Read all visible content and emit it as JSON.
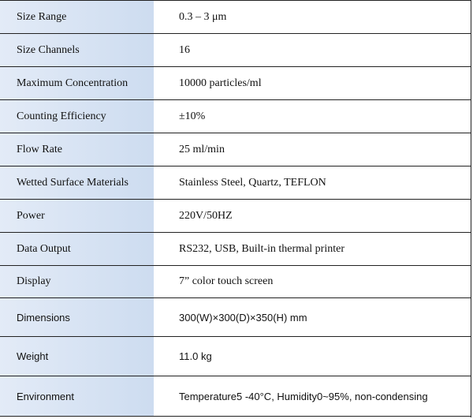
{
  "table": {
    "rows": [
      [
        "Size Range",
        "0.3 – 3 μm"
      ],
      [
        "Size Channels",
        "16"
      ],
      [
        "Maximum Concentration",
        "10000 particles/ml"
      ],
      [
        "Counting Efficiency",
        "±10%"
      ],
      [
        "Flow Rate",
        "25 ml/min"
      ],
      [
        "Wetted Surface Materials",
        "Stainless Steel, Quartz, TEFLON"
      ],
      [
        "Power",
        "220V/50HZ"
      ],
      [
        "Data Output",
        "RS232, USB, Built-in thermal printer"
      ],
      [
        "Display",
        "7” color touch screen"
      ],
      [
        "Dimensions",
        "300(W)×300(D)×350(H) mm"
      ],
      [
        "Weight",
        "11.0 kg"
      ],
      [
        "Environment",
        "Temperature5 -40°C, Humidity0~95%, non-condensing"
      ]
    ]
  }
}
